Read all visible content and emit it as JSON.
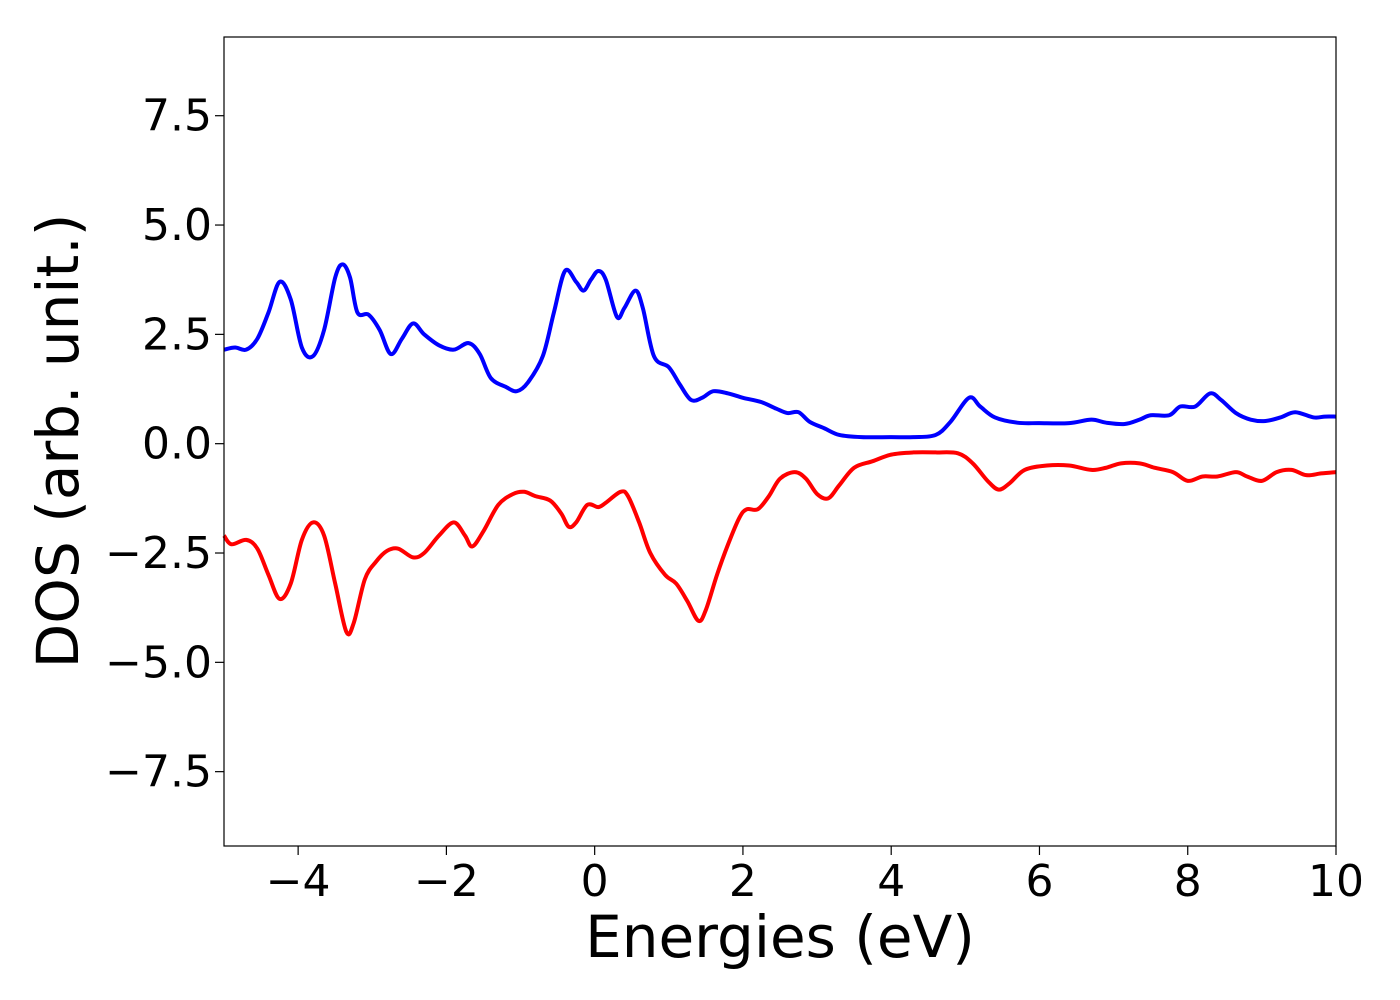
{
  "chart_data": {
    "type": "line",
    "title": "",
    "xlabel": "Energies (eV)",
    "ylabel": "DOS (arb. unit.)",
    "xlim": [
      -5,
      10
    ],
    "ylim": [
      -9.2,
      9.3
    ],
    "xticks": [
      -4,
      -2,
      0,
      2,
      4,
      6,
      8,
      10
    ],
    "xtick_labels": [
      "−4",
      "−2",
      "0",
      "2",
      "4",
      "6",
      "8",
      "10"
    ],
    "yticks": [
      7.5,
      5.0,
      2.5,
      0.0,
      -2.5,
      -5.0,
      -7.5
    ],
    "ytick_labels": [
      "7.5",
      "5.0",
      "2.5",
      "0.0",
      "−2.5",
      "−5.0",
      "−7.5"
    ],
    "grid": false,
    "legend": "none",
    "series": [
      {
        "color": "#0000ff",
        "points": [
          [
            -5.0,
            2.15
          ],
          [
            -4.85,
            2.2
          ],
          [
            -4.7,
            2.15
          ],
          [
            -4.55,
            2.4
          ],
          [
            -4.4,
            3.0
          ],
          [
            -4.25,
            3.7
          ],
          [
            -4.1,
            3.3
          ],
          [
            -3.95,
            2.2
          ],
          [
            -3.8,
            2.0
          ],
          [
            -3.65,
            2.6
          ],
          [
            -3.5,
            3.8
          ],
          [
            -3.4,
            4.1
          ],
          [
            -3.3,
            3.8
          ],
          [
            -3.2,
            3.0
          ],
          [
            -3.05,
            2.95
          ],
          [
            -2.9,
            2.6
          ],
          [
            -2.75,
            2.05
          ],
          [
            -2.6,
            2.4
          ],
          [
            -2.45,
            2.75
          ],
          [
            -2.3,
            2.5
          ],
          [
            -2.1,
            2.25
          ],
          [
            -1.9,
            2.15
          ],
          [
            -1.7,
            2.3
          ],
          [
            -1.55,
            2.05
          ],
          [
            -1.4,
            1.5
          ],
          [
            -1.2,
            1.3
          ],
          [
            -1.05,
            1.2
          ],
          [
            -0.9,
            1.4
          ],
          [
            -0.7,
            2.0
          ],
          [
            -0.55,
            3.0
          ],
          [
            -0.4,
            3.95
          ],
          [
            -0.25,
            3.7
          ],
          [
            -0.15,
            3.5
          ],
          [
            -0.05,
            3.75
          ],
          [
            0.05,
            3.95
          ],
          [
            0.15,
            3.75
          ],
          [
            0.3,
            2.9
          ],
          [
            0.4,
            3.1
          ],
          [
            0.55,
            3.5
          ],
          [
            0.65,
            3.1
          ],
          [
            0.8,
            2.0
          ],
          [
            1.0,
            1.75
          ],
          [
            1.15,
            1.35
          ],
          [
            1.3,
            1.0
          ],
          [
            1.45,
            1.05
          ],
          [
            1.6,
            1.2
          ],
          [
            1.8,
            1.15
          ],
          [
            2.0,
            1.05
          ],
          [
            2.25,
            0.95
          ],
          [
            2.45,
            0.8
          ],
          [
            2.6,
            0.7
          ],
          [
            2.75,
            0.72
          ],
          [
            2.9,
            0.5
          ],
          [
            3.1,
            0.35
          ],
          [
            3.3,
            0.2
          ],
          [
            3.6,
            0.15
          ],
          [
            4.0,
            0.15
          ],
          [
            4.3,
            0.15
          ],
          [
            4.6,
            0.2
          ],
          [
            4.8,
            0.5
          ],
          [
            5.05,
            1.05
          ],
          [
            5.2,
            0.85
          ],
          [
            5.4,
            0.6
          ],
          [
            5.7,
            0.48
          ],
          [
            6.0,
            0.47
          ],
          [
            6.4,
            0.47
          ],
          [
            6.7,
            0.55
          ],
          [
            6.9,
            0.48
          ],
          [
            7.15,
            0.45
          ],
          [
            7.35,
            0.55
          ],
          [
            7.5,
            0.65
          ],
          [
            7.75,
            0.65
          ],
          [
            7.9,
            0.85
          ],
          [
            8.1,
            0.85
          ],
          [
            8.3,
            1.15
          ],
          [
            8.45,
            1.0
          ],
          [
            8.65,
            0.7
          ],
          [
            8.85,
            0.55
          ],
          [
            9.05,
            0.52
          ],
          [
            9.25,
            0.6
          ],
          [
            9.45,
            0.72
          ],
          [
            9.7,
            0.6
          ],
          [
            9.85,
            0.62
          ],
          [
            10.0,
            0.62
          ]
        ]
      },
      {
        "color": "#ff0000",
        "points": [
          [
            -5.0,
            -2.1
          ],
          [
            -4.9,
            -2.3
          ],
          [
            -4.7,
            -2.2
          ],
          [
            -4.55,
            -2.4
          ],
          [
            -4.4,
            -3.0
          ],
          [
            -4.25,
            -3.55
          ],
          [
            -4.1,
            -3.2
          ],
          [
            -3.95,
            -2.2
          ],
          [
            -3.8,
            -1.8
          ],
          [
            -3.65,
            -2.1
          ],
          [
            -3.5,
            -3.2
          ],
          [
            -3.35,
            -4.3
          ],
          [
            -3.25,
            -4.1
          ],
          [
            -3.1,
            -3.1
          ],
          [
            -2.95,
            -2.7
          ],
          [
            -2.8,
            -2.45
          ],
          [
            -2.65,
            -2.4
          ],
          [
            -2.45,
            -2.6
          ],
          [
            -2.3,
            -2.5
          ],
          [
            -2.1,
            -2.1
          ],
          [
            -1.9,
            -1.8
          ],
          [
            -1.75,
            -2.1
          ],
          [
            -1.65,
            -2.35
          ],
          [
            -1.5,
            -2.0
          ],
          [
            -1.3,
            -1.4
          ],
          [
            -1.1,
            -1.15
          ],
          [
            -0.95,
            -1.1
          ],
          [
            -0.8,
            -1.2
          ],
          [
            -0.6,
            -1.3
          ],
          [
            -0.45,
            -1.6
          ],
          [
            -0.35,
            -1.9
          ],
          [
            -0.25,
            -1.8
          ],
          [
            -0.1,
            -1.4
          ],
          [
            0.05,
            -1.45
          ],
          [
            0.15,
            -1.35
          ],
          [
            0.35,
            -1.1
          ],
          [
            0.45,
            -1.2
          ],
          [
            0.6,
            -1.8
          ],
          [
            0.75,
            -2.5
          ],
          [
            0.95,
            -3.0
          ],
          [
            1.1,
            -3.2
          ],
          [
            1.25,
            -3.6
          ],
          [
            1.4,
            -4.05
          ],
          [
            1.5,
            -3.8
          ],
          [
            1.65,
            -3.0
          ],
          [
            1.8,
            -2.3
          ],
          [
            1.95,
            -1.7
          ],
          [
            2.05,
            -1.5
          ],
          [
            2.2,
            -1.5
          ],
          [
            2.35,
            -1.2
          ],
          [
            2.5,
            -0.8
          ],
          [
            2.7,
            -0.65
          ],
          [
            2.85,
            -0.8
          ],
          [
            3.0,
            -1.15
          ],
          [
            3.15,
            -1.25
          ],
          [
            3.3,
            -0.95
          ],
          [
            3.5,
            -0.55
          ],
          [
            3.75,
            -0.4
          ],
          [
            4.0,
            -0.25
          ],
          [
            4.3,
            -0.2
          ],
          [
            4.6,
            -0.2
          ],
          [
            4.9,
            -0.22
          ],
          [
            5.1,
            -0.45
          ],
          [
            5.3,
            -0.85
          ],
          [
            5.45,
            -1.05
          ],
          [
            5.6,
            -0.9
          ],
          [
            5.8,
            -0.6
          ],
          [
            6.1,
            -0.5
          ],
          [
            6.4,
            -0.5
          ],
          [
            6.7,
            -0.6
          ],
          [
            6.9,
            -0.55
          ],
          [
            7.1,
            -0.45
          ],
          [
            7.35,
            -0.45
          ],
          [
            7.55,
            -0.55
          ],
          [
            7.8,
            -0.65
          ],
          [
            8.0,
            -0.85
          ],
          [
            8.2,
            -0.75
          ],
          [
            8.4,
            -0.75
          ],
          [
            8.65,
            -0.65
          ],
          [
            8.8,
            -0.75
          ],
          [
            9.0,
            -0.85
          ],
          [
            9.2,
            -0.65
          ],
          [
            9.4,
            -0.6
          ],
          [
            9.6,
            -0.72
          ],
          [
            9.8,
            -0.68
          ],
          [
            10.0,
            -0.65
          ]
        ]
      }
    ]
  }
}
